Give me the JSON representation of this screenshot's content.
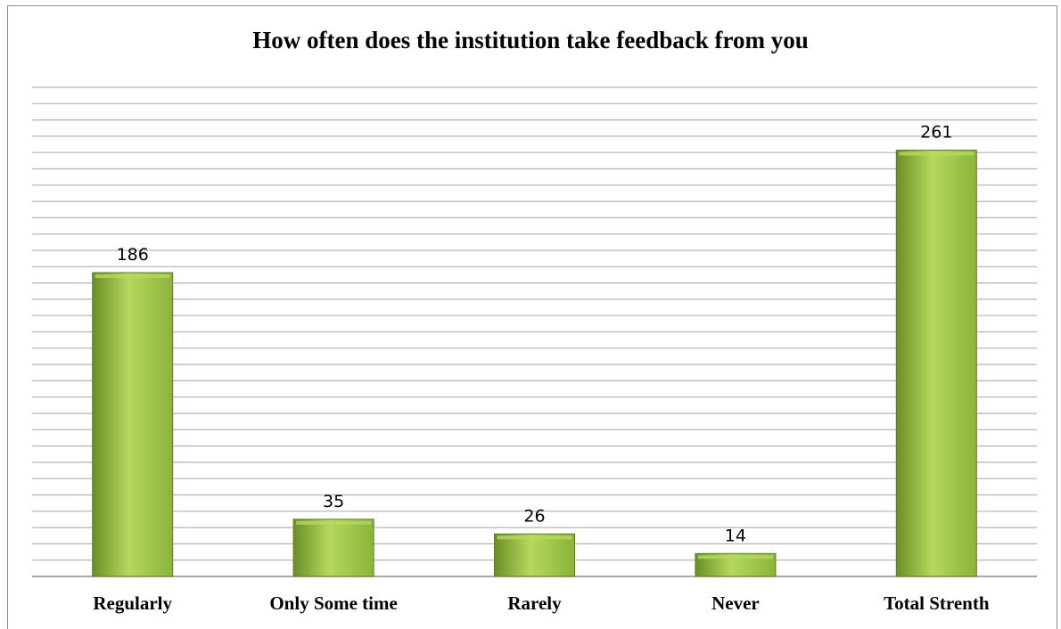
{
  "chart_data": {
    "type": "bar",
    "title": "How often does the institution take feedback from you",
    "categories": [
      "Regularly",
      "Only Some time",
      "Rarely",
      "Never",
      "Total Strenth"
    ],
    "values": [
      186,
      35,
      26,
      14,
      261
    ],
    "data_labels": [
      "186",
      "35",
      "26",
      "14",
      "261"
    ],
    "xlabel": "",
    "ylabel": "",
    "ylim": [
      0,
      300
    ],
    "grid": true,
    "legend": "none",
    "bar_color": "#8ab43a",
    "bar_color_light": "#b5d85e",
    "bar_color_dark": "#6a8f25",
    "grid_color": "#b3b3b3"
  }
}
